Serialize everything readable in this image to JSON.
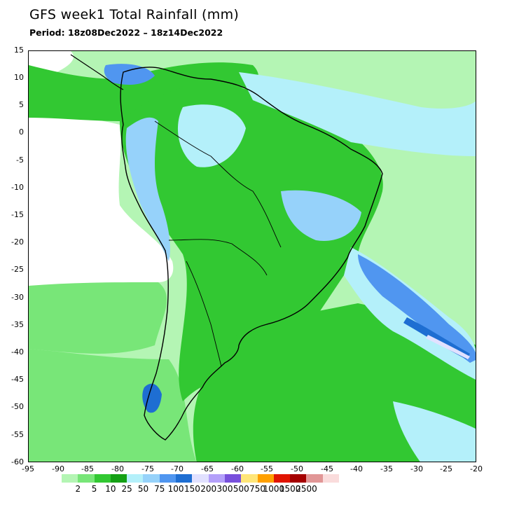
{
  "header": {
    "title": "GFS week1 Total Rainfall (mm)",
    "period": "Period: 18z08Dec2022 – 18z14Dec2022"
  },
  "axes": {
    "y_ticks": [
      "15",
      "10",
      "5",
      "0",
      "-5",
      "-10",
      "-15",
      "-20",
      "-25",
      "-30",
      "-35",
      "-40",
      "-45",
      "-50",
      "-55",
      "-60"
    ],
    "x_ticks": [
      "-95",
      "-90",
      "-85",
      "-80",
      "-75",
      "-70",
      "-65",
      "-60",
      "-55",
      "-50",
      "-45",
      "-40",
      "-35",
      "-30",
      "-25",
      "-20"
    ],
    "lon_range": [
      -95,
      -20
    ],
    "lat_range": [
      -60,
      15
    ]
  },
  "legend": {
    "labels": [
      "2",
      "5",
      "10",
      "25",
      "50",
      "75",
      "100",
      "150",
      "200",
      "300",
      "500",
      "750",
      "1000",
      "1500",
      "2500"
    ],
    "colors": [
      "#b4f5b4",
      "#78e678",
      "#32c832",
      "#14a014",
      "#b4f0fa",
      "#96d2fa",
      "#5096f0",
      "#1e6ed2",
      "#e1e1ff",
      "#b4a0fa",
      "#7850dc",
      "#ffe678",
      "#ffa000",
      "#e11400",
      "#a50000",
      "#e19696",
      "#fadcdc"
    ]
  }
}
